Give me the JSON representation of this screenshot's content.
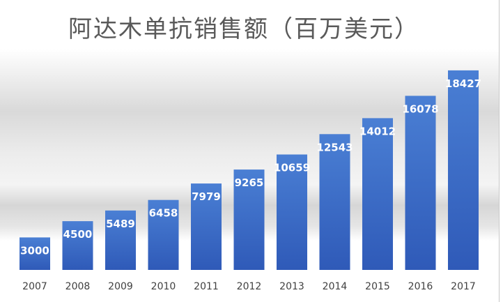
{
  "chart_data": {
    "type": "bar",
    "title": "阿达木单抗销售额（百万美元）",
    "categories": [
      "2007",
      "2008",
      "2009",
      "2010",
      "2011",
      "2012",
      "2013",
      "2014",
      "2015",
      "2016",
      "2017"
    ],
    "values": [
      3000,
      4500,
      5489,
      6458,
      7979,
      9265,
      10659,
      12543,
      14012,
      16078,
      18427
    ],
    "ylim": [
      0,
      19000
    ],
    "grid": false,
    "legend": "none",
    "bar_color_top": "#4a7fd4",
    "bar_color_bottom": "#2f5ab8",
    "label_color": "#ffffff",
    "axis_label_color": "#404040"
  }
}
